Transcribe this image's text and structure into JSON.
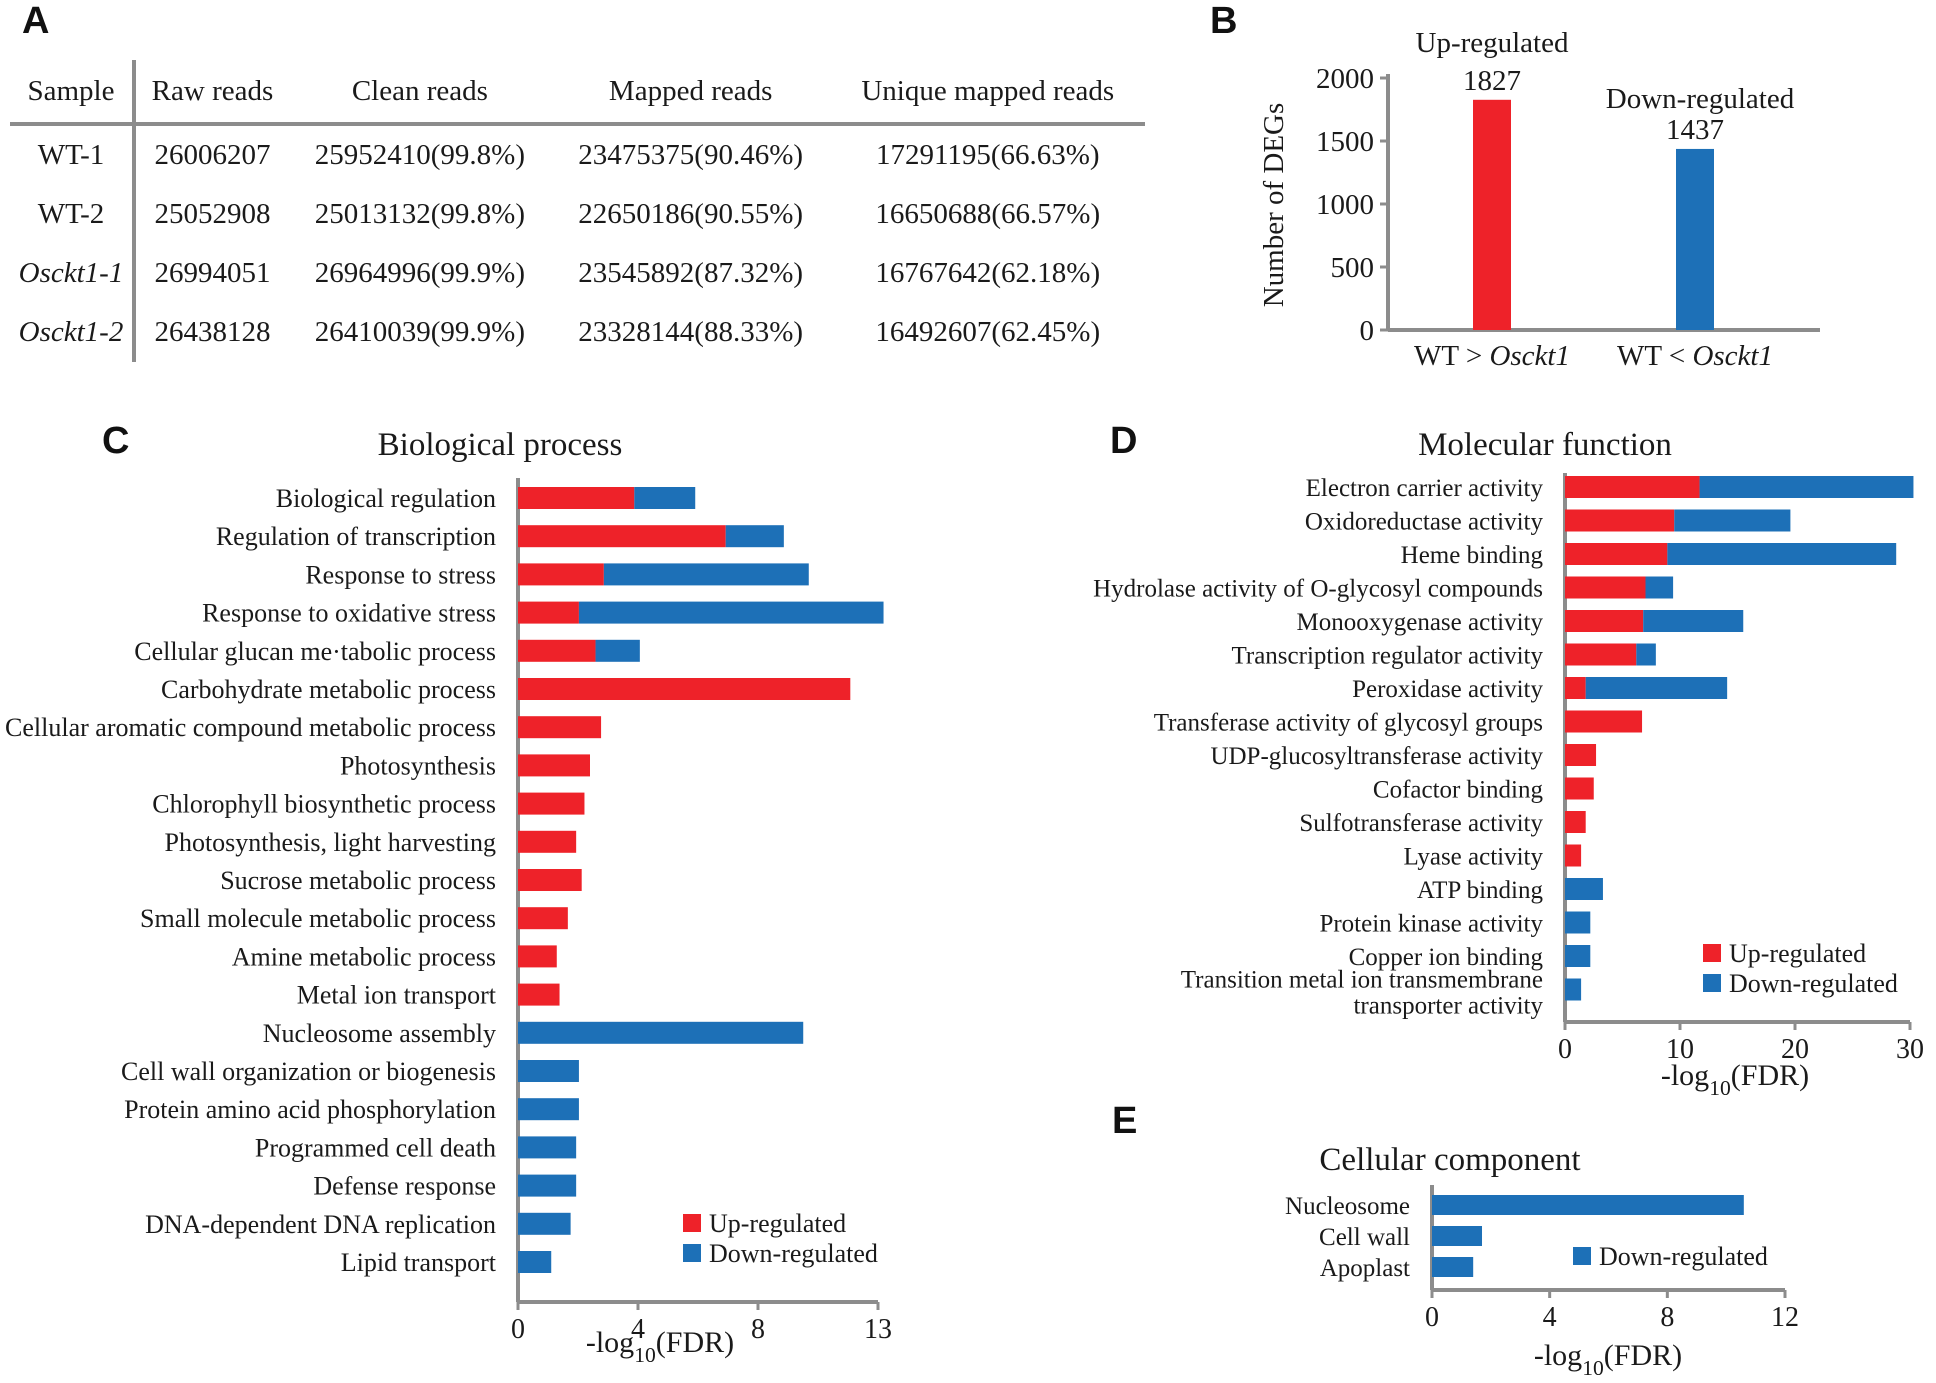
{
  "panel_labels": {
    "a": "A",
    "b": "B",
    "c": "C",
    "d": "D",
    "e": "E"
  },
  "colors": {
    "up": "#ee2229",
    "down": "#1d70b7",
    "axis": "#8c8c8c"
  },
  "table": {
    "headers": [
      "Sample",
      "Raw reads",
      "Clean reads",
      "Mapped reads",
      "Unique mapped reads"
    ],
    "rows": [
      {
        "sample": "WT-1",
        "italic": false,
        "raw": "26006207",
        "clean": "25952410(99.8%)",
        "mapped": "23475375(90.46%)",
        "unique": "17291195(66.63%)"
      },
      {
        "sample": "WT-2",
        "italic": false,
        "raw": "25052908",
        "clean": "25013132(99.8%)",
        "mapped": "22650186(90.55%)",
        "unique": "16650688(66.57%)"
      },
      {
        "sample": "Osckt1-1",
        "italic": true,
        "raw": "26994051",
        "clean": "26964996(99.9%)",
        "mapped": "23545892(87.32%)",
        "unique": "16767642(62.18%)"
      },
      {
        "sample": "Osckt1-2",
        "italic": true,
        "raw": "26438128",
        "clean": "26410039(99.9%)",
        "mapped": "23328144(88.33%)",
        "unique": "16492607(62.45%)"
      }
    ]
  },
  "chart_data": [
    {
      "id": "B",
      "type": "bar",
      "title": "",
      "ylabel": "Number of DEGs",
      "ylim": [
        0,
        2000
      ],
      "yticks": [
        "0",
        "500",
        "1000",
        "1500",
        "2000"
      ],
      "categories": [
        {
          "prefix": "WT > ",
          "gene": "Osckt1"
        },
        {
          "prefix": "WT < ",
          "gene": "Osckt1"
        }
      ],
      "series": [
        {
          "name": "Up-regulated",
          "values": [
            1827,
            null
          ]
        },
        {
          "name": "Down-regulated",
          "values": [
            null,
            1437
          ]
        }
      ],
      "data_labels": [
        "1827",
        "1437"
      ]
    },
    {
      "id": "C",
      "type": "bar",
      "orientation": "horizontal",
      "stacked": true,
      "title": "Biological process",
      "xlabel": {
        "pre": "-log",
        "sub": "10",
        "post": "(FDR)"
      },
      "xlim": [
        0,
        13
      ],
      "xticks": [
        "0",
        "4",
        "8",
        "13"
      ],
      "legend": {
        "position": "bottom-right",
        "up": "Up-regulated",
        "down": "Down-regulated"
      },
      "categories": [
        "Biological regulation",
        "Regulation of transcription",
        "Response to stress",
        "Response to oxidative stress",
        "Cellular glucan me·tabolic process",
        "Carbohydrate metabolic process",
        "Cellular aromatic compound metabolic process",
        "Photosynthesis",
        "Chlorophyll biosynthetic process",
        "Photosynthesis, light harvesting",
        "Sucrose metabolic process",
        "Small molecule metabolic process",
        "Amine metabolic process",
        "Metal ion transport",
        "Nucleosome assembly",
        "Cell wall organization or biogenesis",
        "Protein amino acid phosphorylation",
        "Programmed cell death",
        "Defense response",
        "DNA-dependent DNA replication",
        "Lipid transport"
      ],
      "series": [
        {
          "name": "Up-regulated",
          "values": [
            4.2,
            7.5,
            3.1,
            2.2,
            2.8,
            12.0,
            3.0,
            2.6,
            2.4,
            2.1,
            2.3,
            1.8,
            1.4,
            1.5,
            0,
            0,
            0,
            0,
            0,
            0,
            0
          ]
        },
        {
          "name": "Down-regulated",
          "values": [
            2.2,
            2.1,
            7.4,
            11.0,
            1.6,
            0,
            0,
            0,
            0,
            0,
            0,
            0,
            0,
            0,
            10.3,
            2.2,
            2.2,
            2.1,
            2.1,
            1.9,
            1.2
          ]
        }
      ]
    },
    {
      "id": "D",
      "type": "bar",
      "orientation": "horizontal",
      "stacked": true,
      "title": "Molecular function",
      "xlabel": {
        "pre": "-log",
        "sub": "10",
        "post": "(FDR)"
      },
      "xlim": [
        0,
        30
      ],
      "xticks": [
        "0",
        "10",
        "20",
        "30"
      ],
      "legend": {
        "position": "bottom-right",
        "up": "Up-regulated",
        "down": "Down-regulated"
      },
      "categories": [
        "Electron carrier activity",
        "Oxidoreductase activity",
        "Heme binding",
        "Hydrolase activity of O-glycosyl compounds",
        "Monooxygenase activity",
        "Transcription regulator activity",
        "Peroxidase activity",
        "Transferase activity of glycosyl groups",
        "UDP-glucosyltransferase activity",
        "Cofactor binding",
        "Sulfotransferase activity",
        "Lyase activity",
        "ATP binding",
        "Protein kinase activity",
        "Copper ion binding",
        "Transition metal ion transmembrane transporter activity"
      ],
      "series": [
        {
          "name": "Up-regulated",
          "values": [
            11.7,
            9.5,
            8.9,
            7.0,
            6.8,
            6.2,
            1.8,
            6.7,
            2.7,
            2.5,
            1.8,
            1.4,
            0,
            0,
            0,
            0
          ]
        },
        {
          "name": "Down-regulated",
          "values": [
            18.6,
            10.1,
            19.9,
            2.4,
            8.7,
            1.7,
            12.3,
            0,
            0,
            0,
            0,
            0,
            3.3,
            2.2,
            2.2,
            1.4
          ]
        }
      ]
    },
    {
      "id": "E",
      "type": "bar",
      "orientation": "horizontal",
      "title": "Cellular component",
      "xlabel": {
        "pre": "-log",
        "sub": "10",
        "post": "(FDR)"
      },
      "xlim": [
        0,
        12
      ],
      "xticks": [
        "0",
        "4",
        "8",
        "12"
      ],
      "legend": {
        "position": "right",
        "down": "Down-regulated"
      },
      "categories": [
        "Nucleosome",
        "Cell wall",
        "Apoplast"
      ],
      "series": [
        {
          "name": "Down-regulated",
          "values": [
            10.6,
            1.7,
            1.4
          ]
        }
      ]
    }
  ]
}
